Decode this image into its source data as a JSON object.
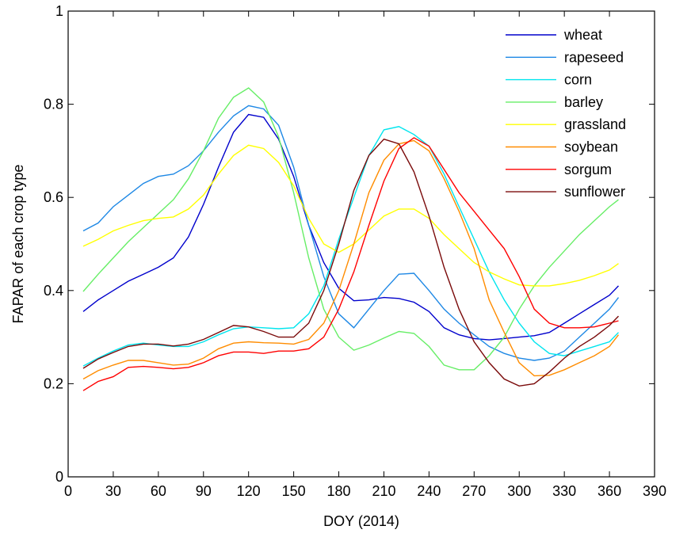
{
  "chart_data": {
    "type": "line",
    "xlabel": "DOY (2014)",
    "ylabel": "FAPAR of each crop type",
    "xlim": [
      0,
      390
    ],
    "ylim": [
      0,
      1
    ],
    "xticks": [
      "0",
      "30",
      "60",
      "90",
      "120",
      "150",
      "180",
      "210",
      "240",
      "270",
      "300",
      "330",
      "360",
      "390"
    ],
    "yticks": [
      "0",
      "0.2",
      "0.4",
      "0.6",
      "0.8",
      "1"
    ],
    "legend_position": "top-right",
    "grid": false,
    "x": [
      10,
      20,
      30,
      40,
      50,
      60,
      70,
      80,
      90,
      100,
      110,
      120,
      130,
      140,
      150,
      160,
      170,
      180,
      190,
      200,
      210,
      220,
      230,
      240,
      250,
      260,
      270,
      280,
      290,
      300,
      310,
      320,
      330,
      340,
      350,
      360,
      366
    ],
    "series": [
      {
        "name": "wheat",
        "color": "#0000cc",
        "values": [
          0.355,
          0.38,
          0.4,
          0.42,
          0.435,
          0.45,
          0.47,
          0.515,
          0.585,
          0.665,
          0.74,
          0.778,
          0.772,
          0.725,
          0.645,
          0.54,
          0.46,
          0.405,
          0.378,
          0.38,
          0.385,
          0.383,
          0.375,
          0.355,
          0.32,
          0.305,
          0.297,
          0.294,
          0.297,
          0.3,
          0.303,
          0.31,
          0.33,
          0.35,
          0.37,
          0.39,
          0.41
        ]
      },
      {
        "name": "rapeseed",
        "color": "#1e88e5",
        "values": [
          0.528,
          0.545,
          0.58,
          0.605,
          0.63,
          0.645,
          0.65,
          0.668,
          0.7,
          0.74,
          0.775,
          0.797,
          0.79,
          0.755,
          0.665,
          0.54,
          0.43,
          0.35,
          0.32,
          0.36,
          0.4,
          0.435,
          0.437,
          0.4,
          0.36,
          0.33,
          0.305,
          0.28,
          0.265,
          0.255,
          0.25,
          0.255,
          0.27,
          0.3,
          0.33,
          0.36,
          0.385
        ]
      },
      {
        "name": "corn",
        "color": "#00e5ee",
        "values": [
          0.238,
          0.255,
          0.27,
          0.283,
          0.287,
          0.283,
          0.28,
          0.28,
          0.29,
          0.305,
          0.318,
          0.322,
          0.32,
          0.318,
          0.32,
          0.35,
          0.41,
          0.51,
          0.6,
          0.69,
          0.745,
          0.752,
          0.735,
          0.71,
          0.65,
          0.58,
          0.51,
          0.44,
          0.38,
          0.33,
          0.29,
          0.265,
          0.26,
          0.27,
          0.28,
          0.29,
          0.31
        ]
      },
      {
        "name": "barley",
        "color": "#66ee66",
        "values": [
          0.398,
          0.435,
          0.47,
          0.505,
          0.535,
          0.565,
          0.595,
          0.64,
          0.7,
          0.77,
          0.815,
          0.835,
          0.805,
          0.73,
          0.61,
          0.47,
          0.36,
          0.3,
          0.272,
          0.283,
          0.298,
          0.312,
          0.308,
          0.28,
          0.24,
          0.23,
          0.23,
          0.26,
          0.3,
          0.36,
          0.41,
          0.45,
          0.485,
          0.52,
          0.55,
          0.58,
          0.595
        ]
      },
      {
        "name": "grassland",
        "color": "#ffff00",
        "values": [
          0.495,
          0.51,
          0.528,
          0.54,
          0.55,
          0.555,
          0.558,
          0.575,
          0.605,
          0.65,
          0.69,
          0.712,
          0.705,
          0.675,
          0.625,
          0.555,
          0.5,
          0.482,
          0.5,
          0.53,
          0.56,
          0.575,
          0.575,
          0.555,
          0.52,
          0.49,
          0.46,
          0.44,
          0.425,
          0.412,
          0.41,
          0.41,
          0.415,
          0.422,
          0.432,
          0.444,
          0.458
        ]
      },
      {
        "name": "soybean",
        "color": "#ff8c00",
        "values": [
          0.21,
          0.228,
          0.24,
          0.25,
          0.25,
          0.245,
          0.24,
          0.242,
          0.255,
          0.275,
          0.287,
          0.29,
          0.288,
          0.287,
          0.285,
          0.295,
          0.33,
          0.4,
          0.5,
          0.61,
          0.68,
          0.715,
          0.722,
          0.7,
          0.64,
          0.57,
          0.49,
          0.38,
          0.31,
          0.245,
          0.217,
          0.218,
          0.23,
          0.245,
          0.26,
          0.28,
          0.305
        ]
      },
      {
        "name": "sorgum",
        "color": "#ff0000",
        "values": [
          0.185,
          0.205,
          0.215,
          0.235,
          0.237,
          0.235,
          0.232,
          0.235,
          0.245,
          0.26,
          0.268,
          0.268,
          0.265,
          0.27,
          0.27,
          0.275,
          0.3,
          0.36,
          0.44,
          0.54,
          0.635,
          0.705,
          0.728,
          0.71,
          0.66,
          0.61,
          0.57,
          0.53,
          0.49,
          0.43,
          0.36,
          0.33,
          0.32,
          0.32,
          0.322,
          0.33,
          0.335
        ]
      },
      {
        "name": "sunflower",
        "color": "#7a0a0a",
        "values": [
          0.233,
          0.253,
          0.267,
          0.28,
          0.285,
          0.285,
          0.281,
          0.285,
          0.295,
          0.31,
          0.325,
          0.322,
          0.312,
          0.3,
          0.3,
          0.33,
          0.4,
          0.5,
          0.615,
          0.69,
          0.725,
          0.715,
          0.655,
          0.56,
          0.45,
          0.36,
          0.29,
          0.245,
          0.21,
          0.195,
          0.2,
          0.225,
          0.255,
          0.28,
          0.3,
          0.325,
          0.345
        ]
      }
    ]
  }
}
